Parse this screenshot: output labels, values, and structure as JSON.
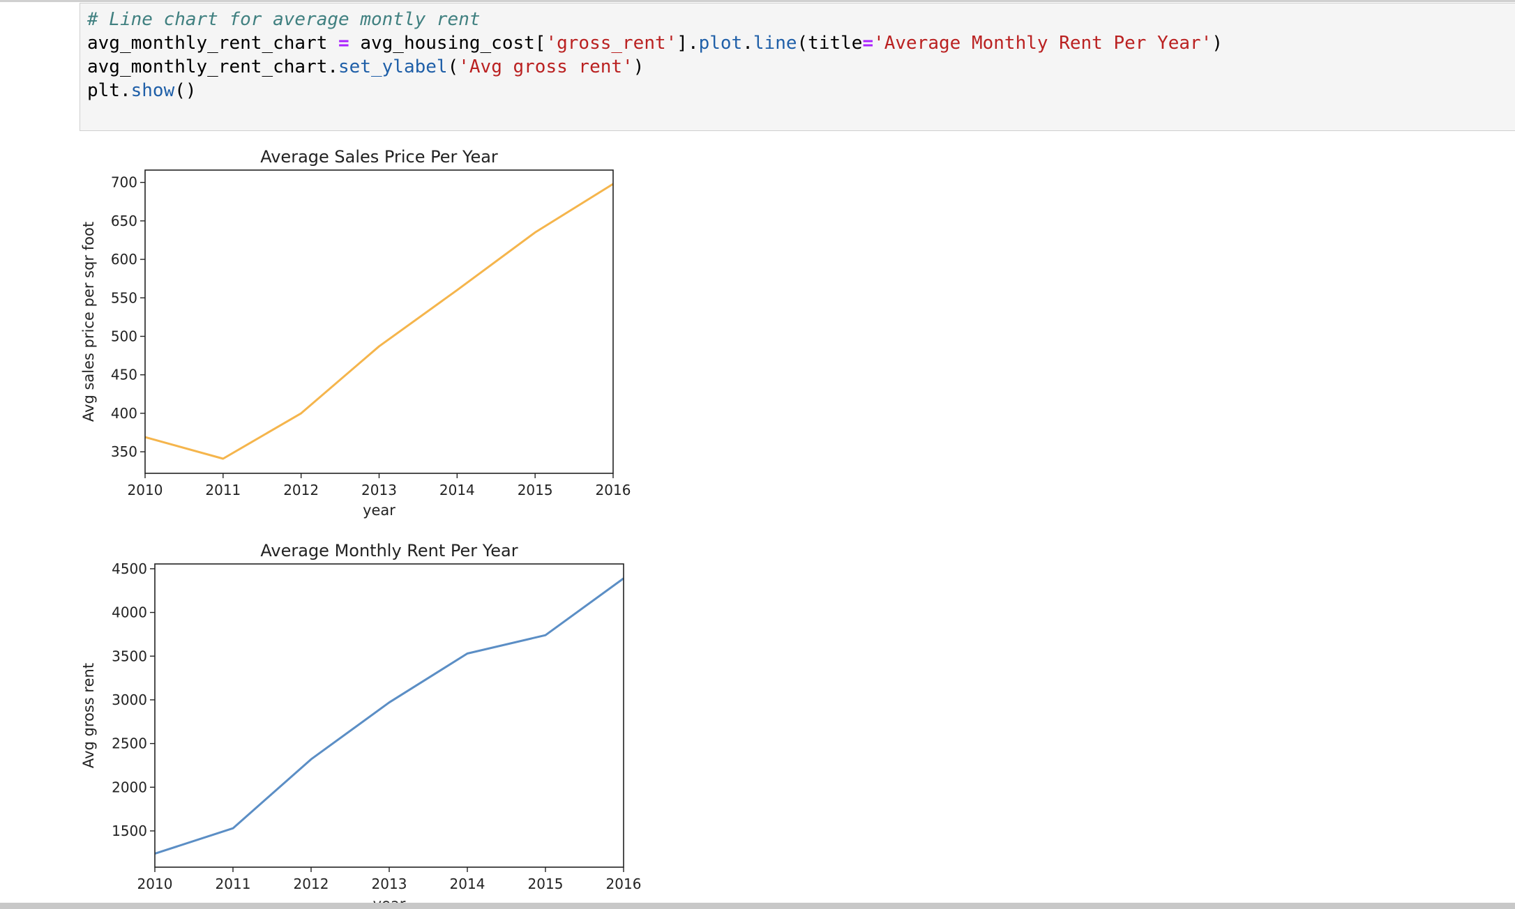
{
  "code": {
    "comment": "# Line chart for average montly rent",
    "line2": {
      "var": "avg_monthly_rent_chart ",
      "eq": "=",
      "obj": " avg_housing_cost[",
      "key": "'gross_rent'",
      "close": "].",
      "plot": "plot",
      "dot": ".",
      "line": "line",
      "open": "(title",
      "eq2": "=",
      "title": "'Average Monthly Rent Per Year'",
      "end": ")"
    },
    "line3": {
      "obj": "avg_monthly_rent_chart.",
      "method": "set_ylabel",
      "open": "(",
      "arg": "'Avg gross rent'",
      "end": ")"
    },
    "line4": {
      "obj": "plt.",
      "method": "show",
      "end": "()"
    }
  },
  "chart_data": [
    {
      "type": "line",
      "title": "Average Sales Price Per Year",
      "xlabel": "year",
      "ylabel": "Avg sales price per sqr foot",
      "x": [
        2010,
        2011,
        2012,
        2013,
        2014,
        2015,
        2016
      ],
      "values": [
        369,
        341,
        400,
        487,
        560,
        635,
        698
      ],
      "xlim": [
        2010,
        2016
      ],
      "ylim": [
        322,
        716
      ],
      "yticks": [
        350,
        400,
        450,
        500,
        550,
        600,
        650,
        700
      ],
      "xticks": [
        "2010",
        "2011",
        "2012",
        "2013",
        "2014",
        "2015",
        "2016"
      ],
      "color": "#f5b54c",
      "grid": false
    },
    {
      "type": "line",
      "title": "Average Monthly Rent Per Year",
      "xlabel": "year",
      "ylabel": "Avg gross rent",
      "x": [
        2010,
        2011,
        2012,
        2013,
        2014,
        2015,
        2016
      ],
      "values": [
        1240,
        1530,
        2320,
        2970,
        3530,
        3740,
        4390
      ],
      "xlim": [
        2010,
        2016
      ],
      "ylim": [
        1085,
        4555
      ],
      "yticks": [
        1500,
        2000,
        2500,
        3000,
        3500,
        4000,
        4500
      ],
      "xticks": [
        "2010",
        "2011",
        "2012",
        "2013",
        "2014",
        "2015",
        "2016"
      ],
      "color": "#5b8ec5",
      "grid": false
    }
  ]
}
